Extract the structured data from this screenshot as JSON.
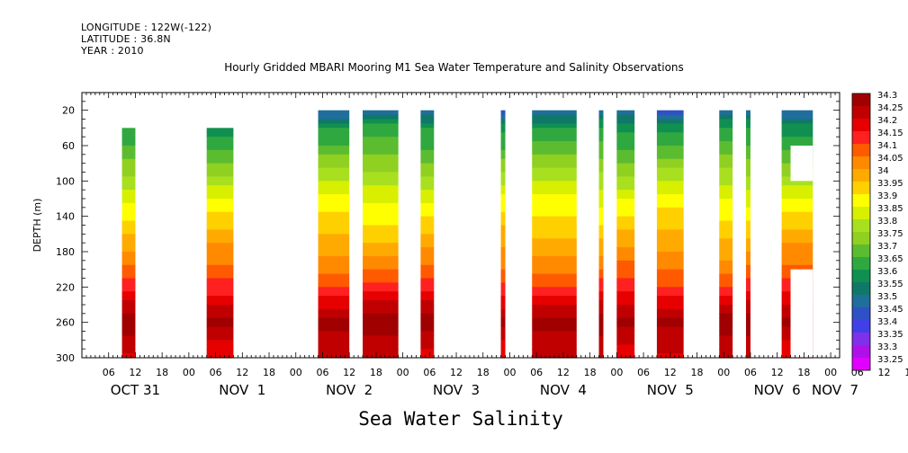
{
  "header": {
    "longitude": "LONGITUDE : 122W(-122)",
    "latitude": "LATITUDE : 36.8N",
    "year": "YEAR : 2010"
  },
  "chart_data": {
    "type": "heatmap",
    "title": "Hourly Gridded MBARI Mooring M1 Sea Water Temperature and Salinity Observations",
    "xlabel": "Sea Water Salinity",
    "ylabel": "DEPTH (m)",
    "x_hours_range": [
      0,
      170
    ],
    "x_tick_labels": [
      "06",
      "12",
      "18",
      "00",
      "06",
      "12",
      "18",
      "00",
      "06",
      "12",
      "18",
      "00",
      "06",
      "12",
      "18",
      "00",
      "06",
      "12",
      "18",
      "00",
      "06",
      "12",
      "18",
      "00",
      "06",
      "12",
      "18",
      "00",
      "06",
      "12",
      "18",
      "00"
    ],
    "day_labels": [
      {
        "label": "OCT 31",
        "hour": 12
      },
      {
        "label": "NOV  1",
        "hour": 36
      },
      {
        "label": "NOV  2",
        "hour": 60
      },
      {
        "label": "NOV  3",
        "hour": 84
      },
      {
        "label": "NOV  4",
        "hour": 108
      },
      {
        "label": "NOV  5",
        "hour": 132
      },
      {
        "label": "NOV  6",
        "hour": 156
      },
      {
        "label": "NOV  7",
        "hour": 169
      }
    ],
    "y_range": [
      300,
      0
    ],
    "y_ticks": [
      20,
      60,
      100,
      140,
      180,
      220,
      260,
      300
    ],
    "colorbar": {
      "levels": [
        "34.3",
        "34.25",
        "34.2",
        "34.15",
        "34.1",
        "34.05",
        "34",
        "33.95",
        "33.9",
        "33.85",
        "33.8",
        "33.75",
        "33.7",
        "33.65",
        "33.6",
        "33.55",
        "33.5",
        "33.45",
        "33.4",
        "33.35",
        "33.3",
        "33.25"
      ],
      "colors": [
        "#a00000",
        "#c00000",
        "#e60000",
        "#ff2020",
        "#ff5a00",
        "#ff8a00",
        "#ffaa00",
        "#ffd000",
        "#ffff00",
        "#d8f000",
        "#a8e020",
        "#90d020",
        "#5cbc30",
        "#30a840",
        "#109050",
        "#107868",
        "#206e9c",
        "#3050c8",
        "#4040e8",
        "#8030e8",
        "#b010e8",
        "#e000ff"
      ]
    },
    "profile": [
      {
        "depth": 20,
        "salinity": 33.45
      },
      {
        "depth": 40,
        "salinity": 33.6
      },
      {
        "depth": 60,
        "salinity": 33.65
      },
      {
        "depth": 80,
        "salinity": 33.72
      },
      {
        "depth": 100,
        "salinity": 33.78
      },
      {
        "depth": 120,
        "salinity": 33.85
      },
      {
        "depth": 140,
        "salinity": 33.9
      },
      {
        "depth": 160,
        "salinity": 33.95
      },
      {
        "depth": 180,
        "salinity": 34.0
      },
      {
        "depth": 200,
        "salinity": 34.05
      },
      {
        "depth": 220,
        "salinity": 34.12
      },
      {
        "depth": 240,
        "salinity": 34.2
      },
      {
        "depth": 260,
        "salinity": 34.28
      },
      {
        "depth": 280,
        "salinity": 34.22
      },
      {
        "depth": 300,
        "salinity": 34.2
      }
    ],
    "data_blocks": [
      {
        "start_hour": 9,
        "end_hour": 12,
        "top_depth": 40,
        "bottom_depth": 300
      },
      {
        "start_hour": 28,
        "end_hour": 34,
        "top_depth": 40,
        "bottom_depth": 300
      },
      {
        "start_hour": 53,
        "end_hour": 60,
        "top_depth": 20,
        "bottom_depth": 300
      },
      {
        "start_hour": 63,
        "end_hour": 71,
        "top_depth": 20,
        "bottom_depth": 300
      },
      {
        "start_hour": 76,
        "end_hour": 79,
        "top_depth": 20,
        "bottom_depth": 300
      },
      {
        "start_hour": 94,
        "end_hour": 95,
        "top_depth": 20,
        "bottom_depth": 300
      },
      {
        "start_hour": 101,
        "end_hour": 111,
        "top_depth": 20,
        "bottom_depth": 300
      },
      {
        "start_hour": 116,
        "end_hour": 117,
        "top_depth": 20,
        "bottom_depth": 300
      },
      {
        "start_hour": 120,
        "end_hour": 124,
        "top_depth": 20,
        "bottom_depth": 300
      },
      {
        "start_hour": 129,
        "end_hour": 135,
        "top_depth": 20,
        "bottom_depth": 300
      },
      {
        "start_hour": 143,
        "end_hour": 146,
        "top_depth": 20,
        "bottom_depth": 300
      },
      {
        "start_hour": 149,
        "end_hour": 150,
        "top_depth": 20,
        "bottom_depth": 300
      },
      {
        "start_hour": 157,
        "end_hour": 164,
        "top_depth": 20,
        "bottom_depth": 300
      }
    ],
    "missing_holes": [
      {
        "start_hour": 159,
        "end_hour": 164,
        "top_depth": 60,
        "bottom_depth": 100
      },
      {
        "start_hour": 159,
        "end_hour": 164,
        "top_depth": 200,
        "bottom_depth": 300
      }
    ]
  }
}
